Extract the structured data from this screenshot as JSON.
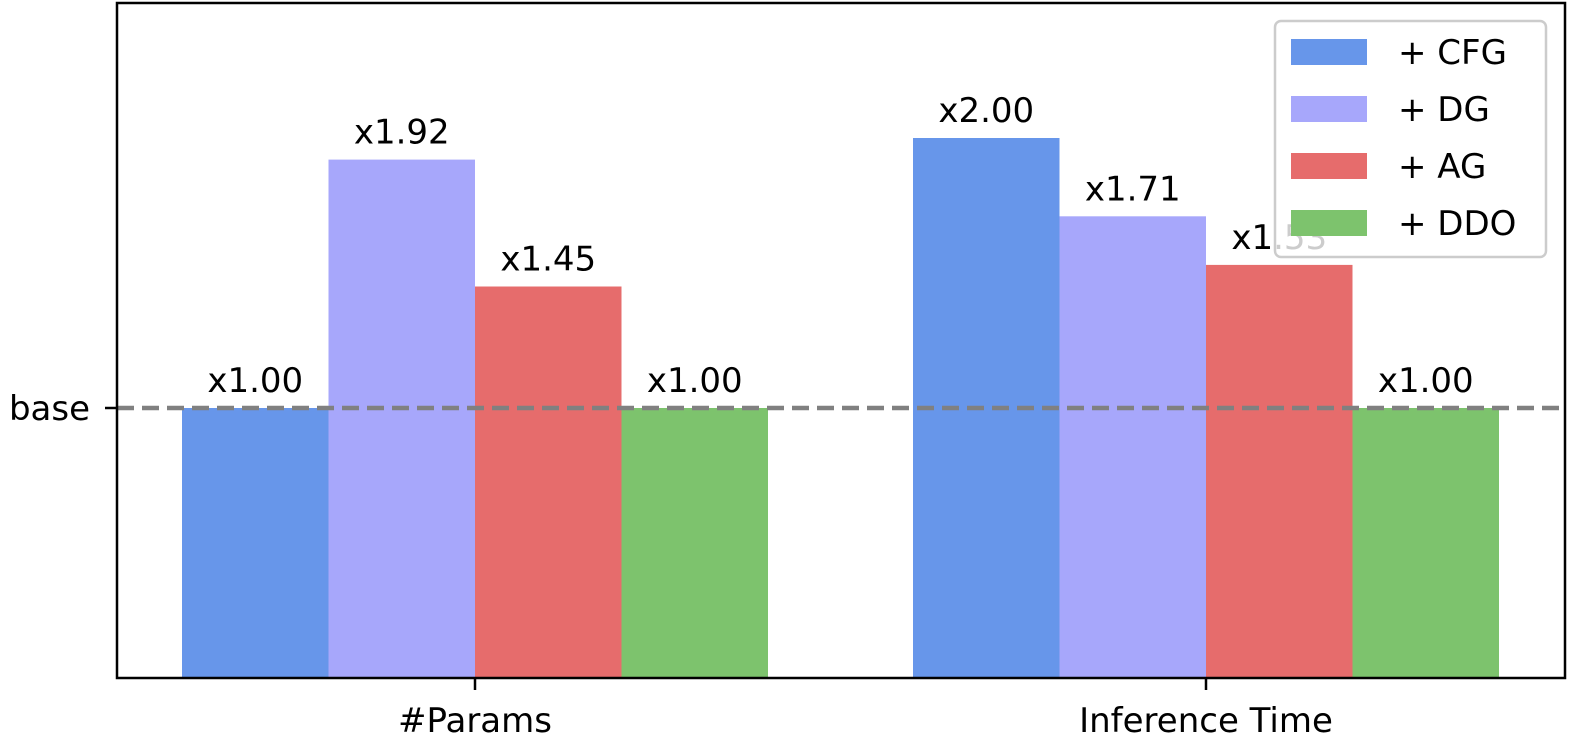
{
  "chart_data": {
    "type": "bar",
    "categories": [
      "#Params",
      "Inference Time"
    ],
    "series": [
      {
        "name": "+ CFG",
        "color": "#6796EA",
        "values": [
          1.0,
          2.0
        ],
        "labels": [
          "x1.00",
          "x2.00"
        ]
      },
      {
        "name": "+ DG",
        "color": "#A7A7FB",
        "values": [
          1.92,
          1.71
        ],
        "labels": [
          "x1.92",
          "x1.71"
        ]
      },
      {
        "name": "+ AG",
        "color": "#E66C6C",
        "values": [
          1.45,
          1.53
        ],
        "labels": [
          "x1.45",
          "x1.53"
        ]
      },
      {
        "name": "+ DDO",
        "color": "#7DC36D",
        "values": [
          1.0,
          1.0
        ],
        "labels": [
          "x1.00",
          "x1.00"
        ]
      }
    ],
    "y_ticks": [
      {
        "value": 1.0,
        "label": "base"
      }
    ],
    "reference_line": {
      "value": 1.0,
      "style": "dashed",
      "color": "#808080"
    },
    "ylim": [
      0,
      2.5
    ],
    "title": "",
    "xlabel": "",
    "ylabel": "",
    "legend_position": "top-right",
    "grid": false
  }
}
